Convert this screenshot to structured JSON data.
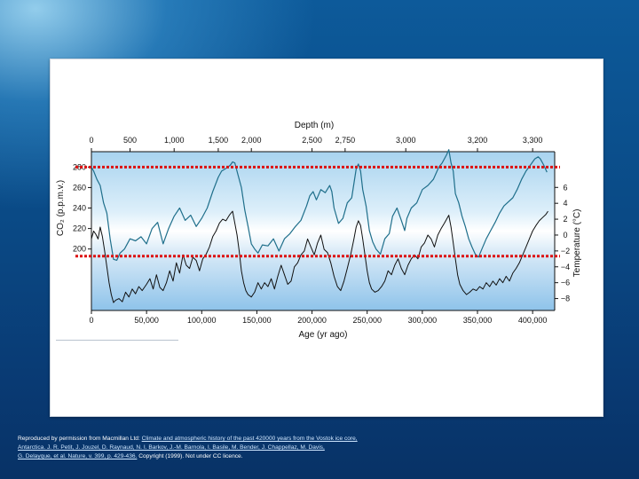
{
  "chart_data": {
    "type": "line",
    "title": "",
    "top_axis": {
      "label": "Depth (m)",
      "ticks": [
        {
          "label": "0",
          "age": 0
        },
        {
          "label": "500",
          "age": 35000
        },
        {
          "label": "1,000",
          "age": 75000
        },
        {
          "label": "1,500",
          "age": 115000
        },
        {
          "label": "2,000",
          "age": 145000
        },
        {
          "label": "2,500",
          "age": 200000
        },
        {
          "label": "2,750",
          "age": 230000
        },
        {
          "label": "3,000",
          "age": 285000
        },
        {
          "label": "3,200",
          "age": 350000
        },
        {
          "label": "3,300",
          "age": 400000
        }
      ]
    },
    "xlabel": "Age (yr ago)",
    "xlim": [
      0,
      420000
    ],
    "x_ticks": [
      "0",
      "50,000",
      "100,000",
      "150,000",
      "200,000",
      "250,000",
      "300,000",
      "350,000",
      "400,000"
    ],
    "x_tick_values": [
      0,
      50000,
      100000,
      150000,
      200000,
      250000,
      300000,
      350000,
      400000
    ],
    "left_axis": {
      "label": "CO₂ (p.p.m.v.)",
      "ticks": [
        280,
        260,
        240,
        220,
        200
      ],
      "lim": [
        140,
        295
      ]
    },
    "right_axis": {
      "label": "Temperature (°C)",
      "ticks": [
        6,
        4,
        2,
        0,
        -2,
        -4,
        -6,
        -8
      ],
      "lim": [
        -9.5,
        10.5
      ]
    },
    "series": [
      {
        "axis": "left",
        "color": "#1f6f8b",
        "points": [
          [
            0,
            280
          ],
          [
            2000,
            276
          ],
          [
            5000,
            268
          ],
          [
            8000,
            262
          ],
          [
            11000,
            245
          ],
          [
            14000,
            235
          ],
          [
            17000,
            210
          ],
          [
            20000,
            190
          ],
          [
            23000,
            189
          ],
          [
            26000,
            196
          ],
          [
            30000,
            200
          ],
          [
            35000,
            210
          ],
          [
            40000,
            208
          ],
          [
            45000,
            212
          ],
          [
            50000,
            205
          ],
          [
            55000,
            220
          ],
          [
            60000,
            226
          ],
          [
            65000,
            205
          ],
          [
            70000,
            220
          ],
          [
            75000,
            232
          ],
          [
            80000,
            240
          ],
          [
            85000,
            228
          ],
          [
            90000,
            233
          ],
          [
            95000,
            222
          ],
          [
            100000,
            230
          ],
          [
            105000,
            240
          ],
          [
            110000,
            256
          ],
          [
            115000,
            270
          ],
          [
            118000,
            276
          ],
          [
            121000,
            278
          ],
          [
            124000,
            280
          ],
          [
            126000,
            282
          ],
          [
            128000,
            285
          ],
          [
            130000,
            284
          ],
          [
            133000,
            272
          ],
          [
            136000,
            260
          ],
          [
            139000,
            238
          ],
          [
            142000,
            222
          ],
          [
            145000,
            205
          ],
          [
            148000,
            200
          ],
          [
            151000,
            196
          ],
          [
            155000,
            204
          ],
          [
            160000,
            203
          ],
          [
            165000,
            210
          ],
          [
            170000,
            198
          ],
          [
            175000,
            210
          ],
          [
            180000,
            215
          ],
          [
            185000,
            222
          ],
          [
            190000,
            228
          ],
          [
            195000,
            242
          ],
          [
            198000,
            252
          ],
          [
            201000,
            256
          ],
          [
            204000,
            248
          ],
          [
            208000,
            258
          ],
          [
            212000,
            255
          ],
          [
            216000,
            262
          ],
          [
            218000,
            256
          ],
          [
            220000,
            240
          ],
          [
            224000,
            225
          ],
          [
            228000,
            230
          ],
          [
            232000,
            245
          ],
          [
            236000,
            250
          ],
          [
            240000,
            278
          ],
          [
            242000,
            283
          ],
          [
            244000,
            276
          ],
          [
            246000,
            258
          ],
          [
            249000,
            242
          ],
          [
            252000,
            218
          ],
          [
            255000,
            207
          ],
          [
            258000,
            200
          ],
          [
            262000,
            195
          ],
          [
            266000,
            210
          ],
          [
            270000,
            215
          ],
          [
            273000,
            232
          ],
          [
            277000,
            240
          ],
          [
            281000,
            228
          ],
          [
            284000,
            218
          ],
          [
            286000,
            230
          ],
          [
            290000,
            240
          ],
          [
            295000,
            245
          ],
          [
            300000,
            258
          ],
          [
            305000,
            262
          ],
          [
            310000,
            268
          ],
          [
            315000,
            280
          ],
          [
            318000,
            284
          ],
          [
            322000,
            292
          ],
          [
            324000,
            297
          ],
          [
            326000,
            284
          ],
          [
            328000,
            276
          ],
          [
            330000,
            254
          ],
          [
            333000,
            245
          ],
          [
            336000,
            232
          ],
          [
            339000,
            222
          ],
          [
            342000,
            210
          ],
          [
            345000,
            202
          ],
          [
            348000,
            195
          ],
          [
            351000,
            192
          ],
          [
            354000,
            200
          ],
          [
            358000,
            210
          ],
          [
            362000,
            218
          ],
          [
            366000,
            226
          ],
          [
            370000,
            235
          ],
          [
            374000,
            242
          ],
          [
            378000,
            246
          ],
          [
            382000,
            250
          ],
          [
            386000,
            258
          ],
          [
            390000,
            268
          ],
          [
            394000,
            276
          ],
          [
            398000,
            282
          ],
          [
            402000,
            288
          ],
          [
            405000,
            290
          ],
          [
            407000,
            288
          ],
          [
            410000,
            282
          ],
          [
            413000,
            275
          ]
        ]
      },
      {
        "axis": "right",
        "color": "#111111",
        "points": [
          [
            0,
            -0.5
          ],
          [
            2000,
            0.5
          ],
          [
            4000,
            0.1
          ],
          [
            6000,
            -0.5
          ],
          [
            8000,
            1
          ],
          [
            10000,
            -0.2
          ],
          [
            12000,
            -2
          ],
          [
            14000,
            -4
          ],
          [
            16000,
            -6
          ],
          [
            18000,
            -7.5
          ],
          [
            20000,
            -8.5
          ],
          [
            22000,
            -8.2
          ],
          [
            25000,
            -8
          ],
          [
            28000,
            -8.4
          ],
          [
            31000,
            -7.2
          ],
          [
            34000,
            -7.8
          ],
          [
            37000,
            -6.8
          ],
          [
            40000,
            -7.4
          ],
          [
            43000,
            -6.5
          ],
          [
            46000,
            -7
          ],
          [
            50000,
            -6.2
          ],
          [
            53000,
            -5.5
          ],
          [
            56000,
            -6.8
          ],
          [
            59000,
            -5
          ],
          [
            62000,
            -6.6
          ],
          [
            65000,
            -7
          ],
          [
            68000,
            -6
          ],
          [
            71000,
            -4.5
          ],
          [
            74000,
            -5.8
          ],
          [
            77000,
            -3.5
          ],
          [
            80000,
            -4.8
          ],
          [
            83000,
            -2.5
          ],
          [
            86000,
            -3.8
          ],
          [
            89000,
            -4.2
          ],
          [
            92000,
            -2.8
          ],
          [
            95000,
            -3.2
          ],
          [
            98000,
            -4.5
          ],
          [
            101000,
            -3
          ],
          [
            104000,
            -2.4
          ],
          [
            107000,
            -1.5
          ],
          [
            110000,
            -0.2
          ],
          [
            113000,
            0.5
          ],
          [
            116000,
            1.5
          ],
          [
            119000,
            2
          ],
          [
            122000,
            1.8
          ],
          [
            125000,
            2.5
          ],
          [
            128000,
            3
          ],
          [
            130000,
            1.5
          ],
          [
            132000,
            0
          ],
          [
            134000,
            -2
          ],
          [
            136000,
            -4.5
          ],
          [
            138000,
            -6
          ],
          [
            140000,
            -7
          ],
          [
            142000,
            -7.5
          ],
          [
            145000,
            -7.8
          ],
          [
            148000,
            -7.2
          ],
          [
            151000,
            -6
          ],
          [
            154000,
            -6.8
          ],
          [
            157000,
            -6
          ],
          [
            160000,
            -6.5
          ],
          [
            163000,
            -5.5
          ],
          [
            166000,
            -6.8
          ],
          [
            169000,
            -5.2
          ],
          [
            172000,
            -3.8
          ],
          [
            175000,
            -5
          ],
          [
            178000,
            -6.2
          ],
          [
            181000,
            -5.8
          ],
          [
            184000,
            -4
          ],
          [
            187000,
            -3.5
          ],
          [
            190000,
            -2.5
          ],
          [
            193000,
            -2
          ],
          [
            196000,
            -0.5
          ],
          [
            199000,
            -1.5
          ],
          [
            202000,
            -2.5
          ],
          [
            205000,
            -1
          ],
          [
            208000,
            0
          ],
          [
            211000,
            -1.8
          ],
          [
            214000,
            -2.2
          ],
          [
            217000,
            -3.5
          ],
          [
            220000,
            -5.2
          ],
          [
            223000,
            -6.5
          ],
          [
            226000,
            -7
          ],
          [
            229000,
            -5.8
          ],
          [
            232000,
            -4.2
          ],
          [
            235000,
            -2.5
          ],
          [
            238000,
            -0.5
          ],
          [
            240000,
            1
          ],
          [
            242000,
            1.8
          ],
          [
            244000,
            1.2
          ],
          [
            246000,
            -0.5
          ],
          [
            248000,
            -2.5
          ],
          [
            250000,
            -4.5
          ],
          [
            252000,
            -6
          ],
          [
            254000,
            -6.8
          ],
          [
            257000,
            -7.2
          ],
          [
            260000,
            -7
          ],
          [
            263000,
            -6.5
          ],
          [
            266000,
            -5.8
          ],
          [
            269000,
            -4.5
          ],
          [
            272000,
            -5
          ],
          [
            275000,
            -3.8
          ],
          [
            278000,
            -3
          ],
          [
            281000,
            -4.2
          ],
          [
            284000,
            -5
          ],
          [
            287000,
            -3.8
          ],
          [
            290000,
            -3
          ],
          [
            293000,
            -2.5
          ],
          [
            296000,
            -3
          ],
          [
            299000,
            -1.5
          ],
          [
            302000,
            -1
          ],
          [
            305000,
            0
          ],
          [
            308000,
            -0.5
          ],
          [
            311000,
            -1.5
          ],
          [
            314000,
            0
          ],
          [
            317000,
            0.8
          ],
          [
            320000,
            1.5
          ],
          [
            322000,
            2
          ],
          [
            324000,
            2.5
          ],
          [
            326000,
            1
          ],
          [
            328000,
            -1
          ],
          [
            330000,
            -3
          ],
          [
            332000,
            -5
          ],
          [
            334000,
            -6.2
          ],
          [
            337000,
            -7
          ],
          [
            340000,
            -7.5
          ],
          [
            343000,
            -7.2
          ],
          [
            346000,
            -6.8
          ],
          [
            349000,
            -7
          ],
          [
            352000,
            -6.5
          ],
          [
            355000,
            -6.8
          ],
          [
            358000,
            -6
          ],
          [
            361000,
            -6.5
          ],
          [
            364000,
            -5.8
          ],
          [
            367000,
            -6.3
          ],
          [
            370000,
            -5.5
          ],
          [
            373000,
            -6
          ],
          [
            376000,
            -5.2
          ],
          [
            379000,
            -5.8
          ],
          [
            382000,
            -4.8
          ],
          [
            385000,
            -4.2
          ],
          [
            388000,
            -3.5
          ],
          [
            391000,
            -2.5
          ],
          [
            394000,
            -1.5
          ],
          [
            397000,
            -0.5
          ],
          [
            400000,
            0.5
          ],
          [
            403000,
            1.2
          ],
          [
            406000,
            1.8
          ],
          [
            409000,
            2.2
          ],
          [
            412000,
            2.6
          ],
          [
            414000,
            3
          ]
        ]
      }
    ],
    "reference_lines": [
      {
        "axis": "left",
        "value": 280,
        "color": "#dd1111",
        "style": "dotted"
      },
      {
        "axis": "left",
        "value": 193,
        "color": "#dd1111",
        "style": "dotted"
      }
    ],
    "background": {
      "upper": "#a8d3ef",
      "middle": "#ffffff",
      "lower": "#8ec3ea"
    }
  },
  "caption": {
    "lead": "Reproduced by permission from Macmillan Ltd:",
    "link1": "Climate and atmospheric history of the past 420000 years from the Vostok ice core,",
    "link2": "Antarctica. J. R. Petit, J. Jouzel, D. Raynaud, N. I. Barkov, J.-M. Barnola, I. Basile, M. Bender, J. Chappellaz, M. Davis,",
    "link3": "G. Delayque, et al. Nature, v. 399, p. 429-436.",
    "tail": "Copyright (1999). Not under CC licence."
  }
}
